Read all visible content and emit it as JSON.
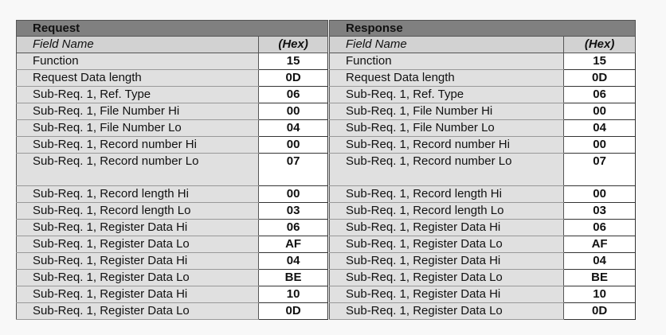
{
  "request": {
    "title": "Request",
    "col_field": "Field Name",
    "col_hex": "(Hex)",
    "rows": [
      {
        "field": "Function",
        "hex": "15"
      },
      {
        "field": "Request Data length",
        "hex": "0D"
      },
      {
        "field": "Sub-Req. 1, Ref. Type",
        "hex": "06"
      },
      {
        "field": "Sub-Req. 1, File Number Hi",
        "hex": "00"
      },
      {
        "field": "Sub-Req. 1, File Number Lo",
        "hex": "04"
      },
      {
        "field": "Sub-Req. 1, Record number Hi",
        "hex": "00"
      },
      {
        "field": "Sub-Req. 1, Record number Lo",
        "hex": "07"
      },
      {
        "field": "Sub-Req. 1, Record length Hi",
        "hex": "00"
      },
      {
        "field": "Sub-Req. 1, Record length Lo",
        "hex": "03"
      },
      {
        "field": "Sub-Req. 1, Register Data Hi",
        "hex": "06"
      },
      {
        "field": "Sub-Req. 1, Register Data Lo",
        "hex": "AF"
      },
      {
        "field": "Sub-Req. 1, Register Data Hi",
        "hex": "04"
      },
      {
        "field": "Sub-Req. 1, Register Data Lo",
        "hex": "BE"
      },
      {
        "field": "Sub-Req. 1, Register Data Hi",
        "hex": "10"
      },
      {
        "field": "Sub-Req. 1, Register Data Lo",
        "hex": "0D"
      }
    ]
  },
  "response": {
    "title": "Response",
    "col_field": "Field Name",
    "col_hex": "(Hex)",
    "rows": [
      {
        "field": "Function",
        "hex": "15"
      },
      {
        "field": "Request Data length",
        "hex": "0D"
      },
      {
        "field": "Sub-Req. 1, Ref. Type",
        "hex": "06"
      },
      {
        "field": "Sub-Req. 1, File Number Hi",
        "hex": "00"
      },
      {
        "field": "Sub-Req. 1, File Number Lo",
        "hex": "04"
      },
      {
        "field": "Sub-Req. 1, Record number Hi",
        "hex": "00"
      },
      {
        "field": "Sub-Req. 1, Record number Lo",
        "hex": "07"
      },
      {
        "field": "Sub-Req. 1, Record length Hi",
        "hex": "00"
      },
      {
        "field": "Sub-Req. 1, Record length Lo",
        "hex": "03"
      },
      {
        "field": "Sub-Req. 1, Register Data Hi",
        "hex": "06"
      },
      {
        "field": "Sub-Req. 1, Register Data Lo",
        "hex": "AF"
      },
      {
        "field": "Sub-Req. 1, Register Data Hi",
        "hex": "04"
      },
      {
        "field": "Sub-Req. 1, Register Data Lo",
        "hex": "BE"
      },
      {
        "field": "Sub-Req. 1, Register Data Hi",
        "hex": "10"
      },
      {
        "field": "Sub-Req. 1, Register Data Lo",
        "hex": "0D"
      }
    ]
  }
}
